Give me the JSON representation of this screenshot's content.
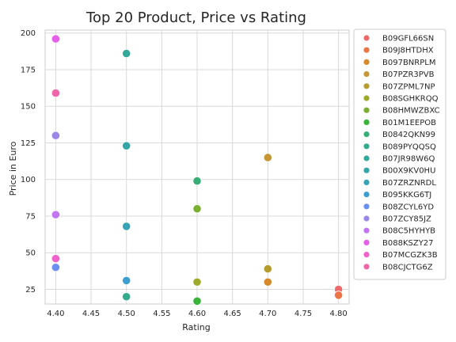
{
  "chart_data": {
    "type": "scatter",
    "title": "Top 20 Product, Price vs Rating",
    "xlabel": "Rating",
    "ylabel": "Price in Euro",
    "xlim": [
      4.385,
      4.815
    ],
    "ylim": [
      15,
      202
    ],
    "xticks": [
      "4.40",
      "4.45",
      "4.50",
      "4.55",
      "4.60",
      "4.65",
      "4.70",
      "4.75",
      "4.80"
    ],
    "yticks": [
      "25",
      "50",
      "75",
      "100",
      "125",
      "150",
      "175",
      "200"
    ],
    "grid": true,
    "legend_position": "right",
    "series": [
      {
        "name": "B09GFL66SN",
        "color": "#f0696a",
        "x": 4.8,
        "y": 25
      },
      {
        "name": "B09J8HTDHX",
        "color": "#ec7546",
        "x": 4.8,
        "y": 21
      },
      {
        "name": "B097BNRPLM",
        "color": "#d78a2c",
        "x": 4.7,
        "y": 30
      },
      {
        "name": "B07PZR3PVB",
        "color": "#c69534",
        "x": 4.7,
        "y": 115
      },
      {
        "name": "B07ZPML7NP",
        "color": "#b59c2f",
        "x": 4.7,
        "y": 39
      },
      {
        "name": "B08SGHKRQQ",
        "color": "#9eaa2a",
        "x": 4.6,
        "y": 30
      },
      {
        "name": "B08HMWZBXC",
        "color": "#7aaf2f",
        "x": 4.6,
        "y": 80
      },
      {
        "name": "B01M1EEPOB",
        "color": "#39b33a",
        "x": 4.6,
        "y": 17
      },
      {
        "name": "B0842QKN99",
        "color": "#36ae76",
        "x": 4.6,
        "y": 99
      },
      {
        "name": "B089PYQQSQ",
        "color": "#33ab8d",
        "x": 4.5,
        "y": 20
      },
      {
        "name": "B07JR98W6Q",
        "color": "#32a99b",
        "x": 4.5,
        "y": 186
      },
      {
        "name": "B00X9KV0HU",
        "color": "#34a6a8",
        "x": 4.5,
        "y": 123
      },
      {
        "name": "B07ZRZNRDL",
        "color": "#38a3b7",
        "x": 4.5,
        "y": 68
      },
      {
        "name": "B095KKG6TJ",
        "color": "#3d9ed0",
        "x": 4.5,
        "y": 31
      },
      {
        "name": "B08ZCYL6YD",
        "color": "#6a8ff0",
        "x": 4.4,
        "y": 40
      },
      {
        "name": "B07ZCY85JZ",
        "color": "#9a87e8",
        "x": 4.4,
        "y": 130
      },
      {
        "name": "B08C5HYHYB",
        "color": "#c176ef",
        "x": 4.4,
        "y": 76
      },
      {
        "name": "B088KSZY27",
        "color": "#e65fe8",
        "x": 4.4,
        "y": 196
      },
      {
        "name": "B07MCGZK3B",
        "color": "#ee62c9",
        "x": 4.4,
        "y": 46
      },
      {
        "name": "B08CJCTG6Z",
        "color": "#ef66a9",
        "x": 4.4,
        "y": 159
      }
    ]
  }
}
